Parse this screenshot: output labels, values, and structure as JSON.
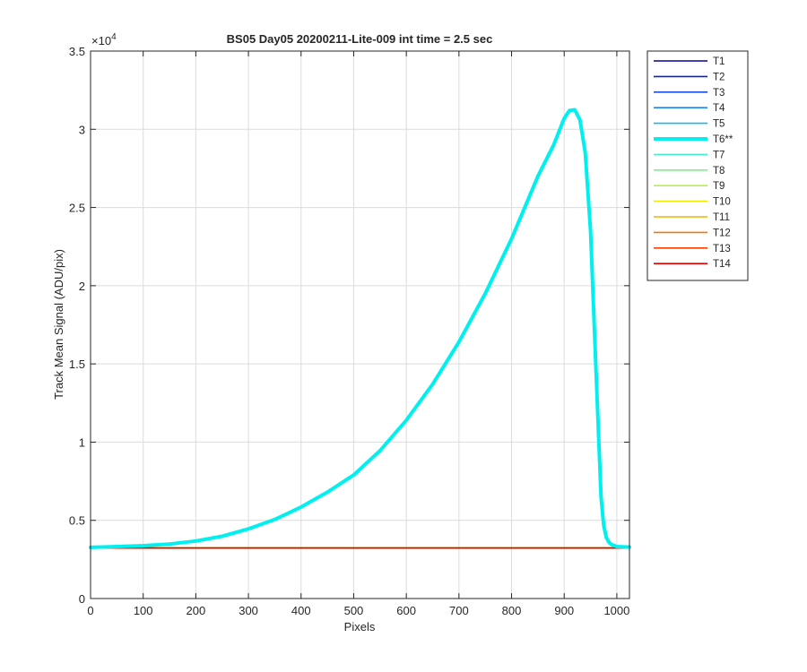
{
  "chart_data": {
    "type": "line",
    "title": "BS05 Day05 20200211-Lite-009 int time = 2.5 sec",
    "xlabel": "Pixels",
    "ylabel": "Track Mean Signal (ADU/pix)",
    "xlim": [
      0,
      1024
    ],
    "ylim": [
      0,
      35000
    ],
    "y_exponent_label": "×10⁴",
    "y_exponent_base": "×10",
    "y_exponent_power": "4",
    "x_ticks": [
      0,
      100,
      200,
      300,
      400,
      500,
      600,
      700,
      800,
      900,
      1000
    ],
    "x_tick_labels": [
      "0",
      "100",
      "200",
      "300",
      "400",
      "500",
      "600",
      "700",
      "800",
      "900",
      "1000"
    ],
    "y_ticks": [
      0,
      5000,
      10000,
      15000,
      20000,
      25000,
      30000,
      35000
    ],
    "y_tick_labels": [
      "0",
      "0.5",
      "1",
      "1.5",
      "2",
      "2.5",
      "3",
      "3.5"
    ],
    "grid": true,
    "legend_position": "outside-right",
    "flat_series_value": 3230,
    "series": [
      {
        "name": "T1",
        "color": "#0000aa",
        "highlight": false
      },
      {
        "name": "T2",
        "color": "#0a1fcc",
        "highlight": false
      },
      {
        "name": "T3",
        "color": "#1a4fe0",
        "highlight": false
      },
      {
        "name": "T4",
        "color": "#1d86e6",
        "highlight": false
      },
      {
        "name": "T5",
        "color": "#13b8f0",
        "highlight": false
      },
      {
        "name": "T6**",
        "color": "#00f0f0",
        "highlight": true,
        "x": [
          0,
          50,
          100,
          150,
          200,
          250,
          300,
          350,
          400,
          450,
          500,
          550,
          600,
          650,
          700,
          750,
          800,
          850,
          880,
          900,
          910,
          920,
          930,
          940,
          950,
          960,
          970,
          975,
          980,
          985,
          990,
          1000,
          1024
        ],
        "y": [
          3270,
          3320,
          3380,
          3480,
          3680,
          3980,
          4450,
          5050,
          5850,
          6800,
          7900,
          9450,
          11400,
          13700,
          16400,
          19500,
          23000,
          27000,
          29000,
          30700,
          31200,
          31250,
          30600,
          28500,
          23500,
          15000,
          6500,
          4700,
          3900,
          3600,
          3450,
          3320,
          3290
        ]
      },
      {
        "name": "T7",
        "color": "#3ff0c8",
        "highlight": false
      },
      {
        "name": "T8",
        "color": "#7ef088",
        "highlight": false
      },
      {
        "name": "T9",
        "color": "#b8f040",
        "highlight": false
      },
      {
        "name": "T10",
        "color": "#f0e800",
        "highlight": false
      },
      {
        "name": "T11",
        "color": "#f0b400",
        "highlight": false
      },
      {
        "name": "T12",
        "color": "#f07a00",
        "highlight": false
      },
      {
        "name": "T13",
        "color": "#ff4000",
        "highlight": false
      },
      {
        "name": "T14",
        "color": "#e00000",
        "highlight": false
      }
    ]
  }
}
